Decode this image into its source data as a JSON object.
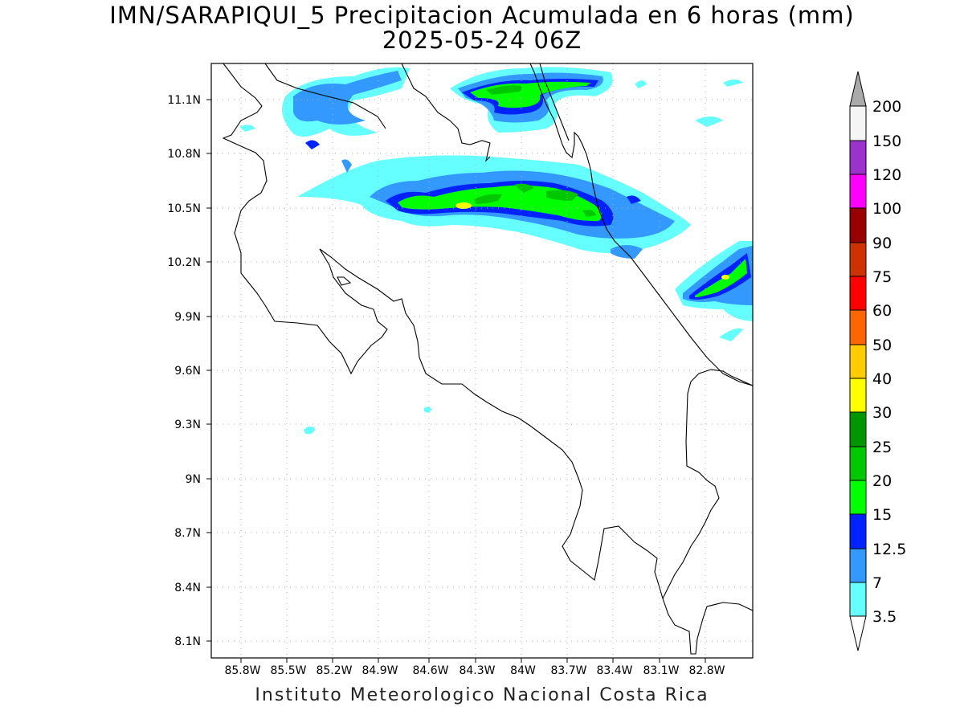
{
  "header": {
    "title_line1": "IMN/SARAPIQUI_5 Precipitacion Acumulada en 6 horas (mm)",
    "title_line2": "2025-05-24 06Z"
  },
  "footer": {
    "credit": "Instituto Meteorologico Nacional Costa Rica"
  },
  "map": {
    "lon_labels": [
      "85.8W",
      "85.5W",
      "85.2W",
      "84.9W",
      "84.6W",
      "84.3W",
      "84W",
      "83.7W",
      "83.4W",
      "83.1W",
      "82.8W"
    ],
    "lat_labels": [
      "11.1N",
      "10.8N",
      "10.5N",
      "10.2N",
      "9.9N",
      "9.6N",
      "9.3N",
      "9N",
      "8.7N",
      "8.4N",
      "8.1N"
    ]
  },
  "colorbar": {
    "labels": [
      "3.5",
      "7",
      "12.5",
      "15",
      "20",
      "25",
      "30",
      "40",
      "50",
      "60",
      "75",
      "90",
      "100",
      "120",
      "150",
      "200"
    ],
    "colors": [
      "#ffffff",
      "#66ffff",
      "#3399ff",
      "#0022ff",
      "#00ff00",
      "#00c800",
      "#009600",
      "#ffff00",
      "#ffcc00",
      "#ff6600",
      "#ff0000",
      "#cc3300",
      "#990000",
      "#ff00ff",
      "#9933cc",
      "#f5f5f5",
      "#aaaaaa"
    ]
  },
  "palette": {
    "c35": "#66ffff",
    "c7": "#3399ff",
    "c125": "#0022ff",
    "c15": "#00ff00",
    "c20": "#00c800",
    "c25": "#009600",
    "c30": "#ffff00"
  }
}
